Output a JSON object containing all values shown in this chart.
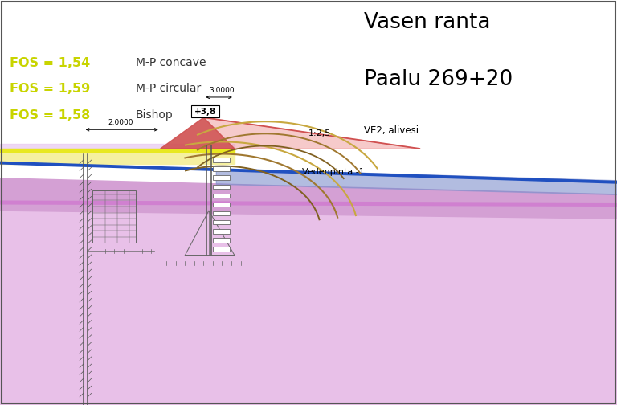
{
  "title_line1": "Vasen ranta",
  "title_line2": "Paalu 269+20",
  "subtitle": "VE2, alivesi",
  "fos_labels": [
    {
      "text": "FOS = 1,54",
      "desc": "M-P concave",
      "color": "#c8d400"
    },
    {
      "text": "FOS = 1,59",
      "desc": "M-P circular",
      "color": "#c8d400"
    },
    {
      "text": "FOS = 1,58",
      "desc": "Bishop",
      "color": "#c8d400"
    }
  ],
  "label_2000": "2.0000",
  "label_38": "+3,8",
  "label_3000": "3.0000",
  "label_slope": "1:2,5",
  "label_water": "Vedenpinta -1",
  "bg_color": "#ffffff",
  "border_color": "#555555",
  "col_yellow": "#f5f0a0",
  "col_yellow_stripe": "#e8e820",
  "col_purple_light": "#e8c0e8",
  "col_purple_mid": "#d4a0d4",
  "col_blue_water": "#8090cc",
  "col_blue_line": "#2050c0",
  "col_emb_red": "#d05050",
  "col_emb_pink": "#f0a0a0",
  "col_curve1": "#c8a840",
  "col_curve2": "#a07830",
  "col_curve3": "#806020",
  "col_pile": "#555555",
  "col_struct": "#666666"
}
